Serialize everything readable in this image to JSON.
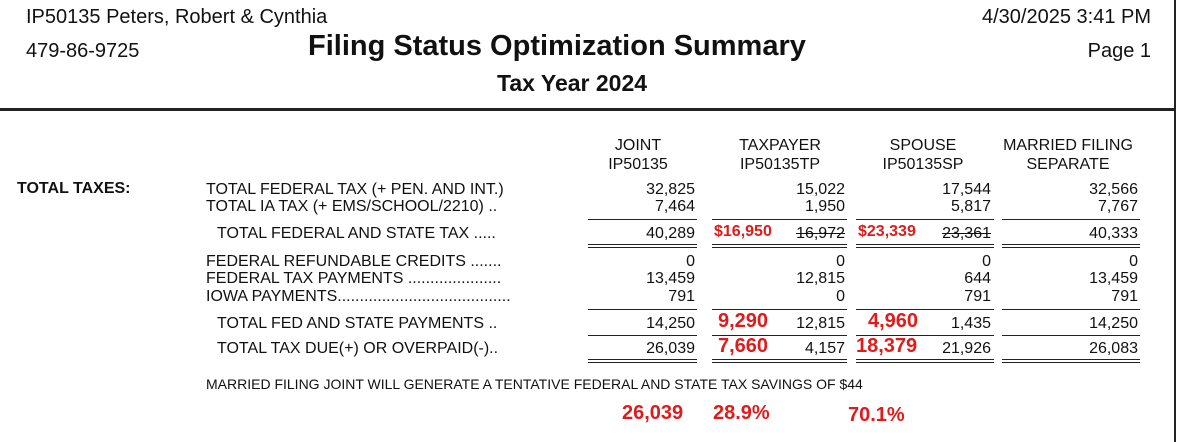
{
  "header": {
    "client": "IP50135  Peters, Robert & Cynthia",
    "ssn": "479-86-9725",
    "title": "Filing Status Optimization Summary",
    "subtitle": "Tax Year 2024",
    "datetime": "4/30/2025  3:41 PM",
    "page": "Page 1"
  },
  "columns": [
    {
      "line1": "JOINT",
      "line2": "IP50135"
    },
    {
      "line1": "TAXPAYER",
      "line2": "IP50135TP"
    },
    {
      "line1": "SPOUSE",
      "line2": "IP50135SP"
    },
    {
      "line1": "MARRIED FILING",
      "line2": "SEPARATE"
    }
  ],
  "section_label": "TOTAL TAXES:",
  "rows": {
    "fed_tax": {
      "label": "TOTAL FEDERAL TAX (+ PEN. AND INT.)",
      "values": [
        "32,825",
        "15,022",
        "17,544",
        "32,566"
      ]
    },
    "ia_tax": {
      "label": "TOTAL IA TAX (+ EMS/SCHOOL/2210) ..",
      "values": [
        "7,464",
        "1,950",
        "5,817",
        "7,767"
      ]
    },
    "fed_state_tax": {
      "label": "TOTAL FEDERAL AND STATE TAX .....",
      "joint": "40,289",
      "tp_red": "$16,950",
      "tp": "16,972",
      "sp_red": "$23,339",
      "sp": "23,361",
      "mfs": "40,333"
    },
    "refundable": {
      "label": "FEDERAL REFUNDABLE CREDITS .......",
      "values": [
        "0",
        "0",
        "0",
        "0"
      ]
    },
    "fed_payments": {
      "label": "FEDERAL TAX PAYMENTS .....................",
      "values": [
        "13,459",
        "12,815",
        "644",
        "13,459"
      ]
    },
    "iowa_payments": {
      "label": "IOWA PAYMENTS.......................................",
      "values": [
        "791",
        "0",
        "791",
        "791"
      ]
    },
    "total_payments": {
      "label": "TOTAL FED AND STATE PAYMENTS ..",
      "joint": "14,250",
      "tp_red": "9,290",
      "tp": "12,815",
      "sp_red": "4,960",
      "sp": "1,435",
      "mfs": "14,250"
    },
    "tax_due": {
      "label": "TOTAL TAX DUE(+) OR OVERPAID(-)..",
      "joint": "26,039",
      "tp_red": "7,660",
      "tp": "4,157",
      "sp_red": "18,379",
      "sp": "21,926",
      "mfs": "26,083"
    }
  },
  "note": "MARRIED FILING JOINT WILL GENERATE A TENTATIVE FEDERAL AND STATE TAX SAVINGS OF $44",
  "annotations": {
    "a1": "26,039",
    "a2": "28.9%",
    "a3": "70.1%"
  },
  "colors": {
    "annotation_red": "#e01b1b"
  }
}
